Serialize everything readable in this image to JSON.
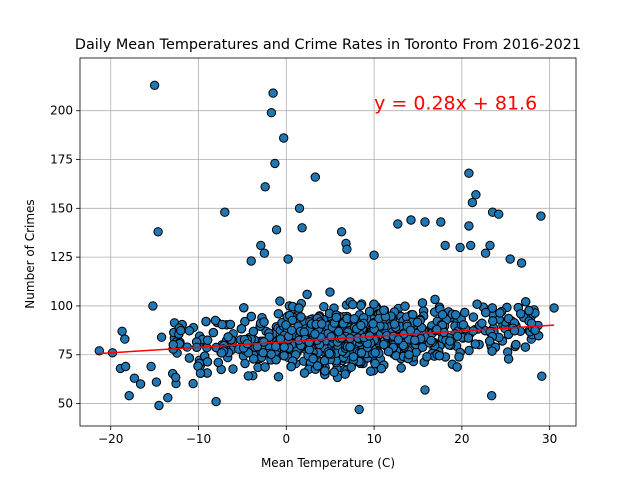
{
  "chart_data": {
    "type": "scatter",
    "title": "Daily Mean Temperatures and Crime Rates in Toronto From 2016-2021",
    "xlabel": "Mean Temperature (C)",
    "ylabel": "Number of Crimes",
    "xlim": [
      -23.5,
      33.0
    ],
    "ylim": [
      38.5,
      227.0
    ],
    "xticks": [
      -20,
      -10,
      0,
      10,
      20,
      30
    ],
    "yticks": [
      50,
      75,
      100,
      125,
      150,
      175,
      200
    ],
    "grid": true,
    "marker_color": "#1f77b4",
    "marker_edge": "#000000",
    "regression": {
      "slope": 0.28,
      "intercept": 81.6,
      "x_range": [
        -21.5,
        30.5
      ],
      "color": "#ff0000",
      "equation": "y = 0.28x + 81.6",
      "label_x": 10.0,
      "label_y": 200.0
    },
    "outliers": [
      {
        "x": -15.0,
        "y": 213
      },
      {
        "x": -1.5,
        "y": 209
      },
      {
        "x": -1.7,
        "y": 199
      },
      {
        "x": -0.3,
        "y": 186
      },
      {
        "x": -1.3,
        "y": 173
      },
      {
        "x": 3.3,
        "y": 166
      },
      {
        "x": 20.8,
        "y": 168
      },
      {
        "x": 21.6,
        "y": 157
      },
      {
        "x": -2.4,
        "y": 161
      },
      {
        "x": 1.5,
        "y": 150
      },
      {
        "x": -14.6,
        "y": 138
      },
      {
        "x": -7.0,
        "y": 148
      },
      {
        "x": 23.5,
        "y": 148
      },
      {
        "x": 24.2,
        "y": 147
      },
      {
        "x": 29.0,
        "y": 146
      },
      {
        "x": 12.7,
        "y": 142
      },
      {
        "x": 14.2,
        "y": 144
      },
      {
        "x": 15.8,
        "y": 143
      },
      {
        "x": 17.6,
        "y": 143
      },
      {
        "x": 20.8,
        "y": 141
      },
      {
        "x": 21.2,
        "y": 153
      },
      {
        "x": 1.8,
        "y": 140
      },
      {
        "x": -1.1,
        "y": 139
      },
      {
        "x": 6.3,
        "y": 138
      },
      {
        "x": 6.8,
        "y": 132
      },
      {
        "x": 6.9,
        "y": 129
      },
      {
        "x": 10.0,
        "y": 126
      },
      {
        "x": 21.0,
        "y": 131
      },
      {
        "x": 23.2,
        "y": 131
      },
      {
        "x": 22.7,
        "y": 127
      },
      {
        "x": 18.1,
        "y": 131
      },
      {
        "x": 19.8,
        "y": 130
      },
      {
        "x": -2.9,
        "y": 131
      },
      {
        "x": -2.5,
        "y": 127
      },
      {
        "x": -15.2,
        "y": 100
      },
      {
        "x": -18.7,
        "y": 87
      },
      {
        "x": -18.4,
        "y": 83
      },
      {
        "x": -21.3,
        "y": 77
      },
      {
        "x": -19.8,
        "y": 76
      },
      {
        "x": -18.9,
        "y": 68
      },
      {
        "x": -18.3,
        "y": 69
      },
      {
        "x": -17.3,
        "y": 63
      },
      {
        "x": -16.6,
        "y": 60
      },
      {
        "x": -15.4,
        "y": 69
      },
      {
        "x": -14.8,
        "y": 61
      },
      {
        "x": -17.9,
        "y": 54
      },
      {
        "x": -14.5,
        "y": 49
      },
      {
        "x": -13.5,
        "y": 53
      },
      {
        "x": -14.2,
        "y": 84
      },
      {
        "x": 26.8,
        "y": 122
      },
      {
        "x": 25.5,
        "y": 124
      },
      {
        "x": 30.5,
        "y": 99
      },
      {
        "x": 29.1,
        "y": 64
      },
      {
        "x": 8.3,
        "y": 47
      },
      {
        "x": 23.4,
        "y": 54
      },
      {
        "x": 0.2,
        "y": 124
      },
      {
        "x": -4.0,
        "y": 123
      },
      {
        "x": 15.8,
        "y": 57
      },
      {
        "x": -8.0,
        "y": 51
      }
    ],
    "cluster": {
      "count": 1600,
      "x_min": -13.0,
      "x_max": 29.0,
      "center_x": 8.0,
      "spread_x": 10.5,
      "spread_y": 12.5,
      "y_min": 50,
      "y_max": 122
    }
  }
}
